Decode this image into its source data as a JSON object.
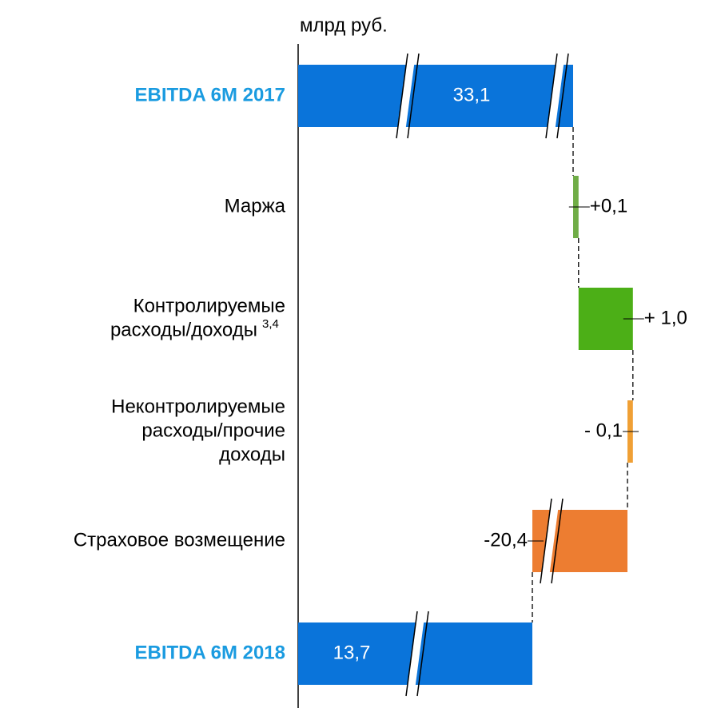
{
  "chart_data": {
    "type": "waterfall",
    "unit_label": "млрд руб.",
    "categories": [
      [
        "EBITDA 6M 2017"
      ],
      [
        "Маржа"
      ],
      [
        "Контролируемые",
        "расходы/доходы"
      ],
      [
        "Неконтролируемые",
        "расходы/прочие",
        "доходы"
      ],
      [
        "Страховое возмещение"
      ],
      [
        "EBITDA 6M 2018"
      ]
    ],
    "category_notes": [
      null,
      null,
      "3,4",
      null,
      null,
      null
    ],
    "values": [
      33.1,
      0.1,
      1.0,
      -0.1,
      -20.4,
      13.7
    ],
    "value_labels": [
      "33,1",
      "+0,1",
      "+ 1,0",
      "- 0,1",
      "-20,4",
      "13,7"
    ],
    "is_total": [
      true,
      false,
      false,
      false,
      false,
      true
    ],
    "colors": [
      "#0a74da",
      "#70ad47",
      "#4caf17",
      "#f0a035",
      "#ed7d31",
      "#0a74da"
    ],
    "label_colors": [
      "#1a9be0",
      "#000000",
      "#000000",
      "#000000",
      "#000000",
      "#1a9be0"
    ],
    "axis_break": true
  }
}
